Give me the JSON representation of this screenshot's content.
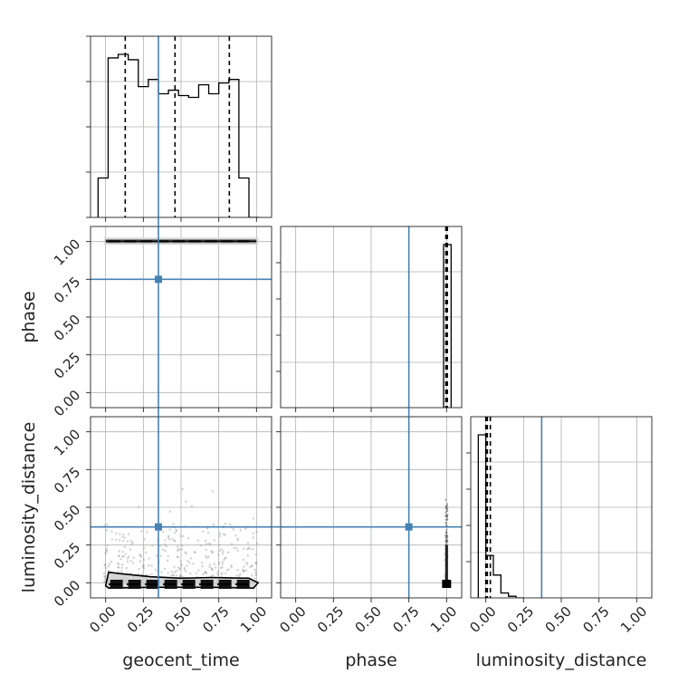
{
  "chart_data": {
    "type": "corner",
    "parameters": [
      "geocent_time",
      "phase",
      "luminosity_distance"
    ],
    "tick_labels": [
      "0.00",
      "0.25",
      "0.50",
      "0.75",
      "1.00"
    ],
    "axis_range": [
      -0.1,
      1.1
    ],
    "grid": true,
    "truths": {
      "geocent_time": 0.35,
      "phase": 0.75,
      "luminosity_distance": 0.37
    },
    "truth_color": "#4682b4",
    "histograms": [
      {
        "parameter": "geocent_time",
        "type": "step",
        "bin_edges": [
          -0.05,
          0.0167,
          0.0833,
          0.15,
          0.2167,
          0.2833,
          0.35,
          0.4167,
          0.4833,
          0.55,
          0.6167,
          0.6833,
          0.75,
          0.8167,
          0.8833,
          0.95,
          1.0167
        ],
        "counts": [
          0.22,
          0.89,
          0.91,
          0.88,
          0.73,
          0.77,
          0.69,
          0.71,
          0.68,
          0.67,
          0.74,
          0.69,
          0.75,
          0.77,
          0.22,
          0.0
        ],
        "quantiles": [
          0.13,
          0.46,
          0.82
        ]
      },
      {
        "parameter": "phase",
        "type": "step",
        "bin_edges": [
          0.98,
          1.0,
          1.03
        ],
        "counts": [
          1.0,
          1.0
        ],
        "quantiles": [
          0.995,
          1.0,
          1.005
        ]
      },
      {
        "parameter": "luminosity_distance",
        "type": "step",
        "bin_edges": [
          -0.05,
          0.0,
          0.05,
          0.1,
          0.15,
          0.2,
          0.25
        ],
        "counts": [
          1.0,
          0.26,
          0.14,
          0.03,
          0.01,
          0.0
        ],
        "quantiles": [
          0.0,
          0.01,
          0.03
        ]
      }
    ],
    "panels_2d": [
      {
        "x": "geocent_time",
        "y": "phase",
        "y_band": [
          0.99,
          1.015
        ],
        "x_span": [
          0.0,
          1.0
        ]
      },
      {
        "x": "geocent_time",
        "y": "luminosity_distance",
        "contour": [
          [
            0.0,
            -0.02
          ],
          [
            0.02,
            0.07
          ],
          [
            0.1,
            0.06
          ],
          [
            0.3,
            0.04
          ],
          [
            0.5,
            0.03
          ],
          [
            0.7,
            0.035
          ],
          [
            0.95,
            0.03
          ],
          [
            1.01,
            0.0
          ],
          [
            0.98,
            -0.035
          ],
          [
            0.7,
            -0.03
          ],
          [
            0.3,
            -0.03
          ],
          [
            0.02,
            -0.035
          ],
          [
            0.0,
            -0.02
          ]
        ],
        "core_y": -0.01
      },
      {
        "x": "phase",
        "y": "luminosity_distance",
        "column_x": 1.0,
        "column_top": 0.55
      }
    ]
  }
}
